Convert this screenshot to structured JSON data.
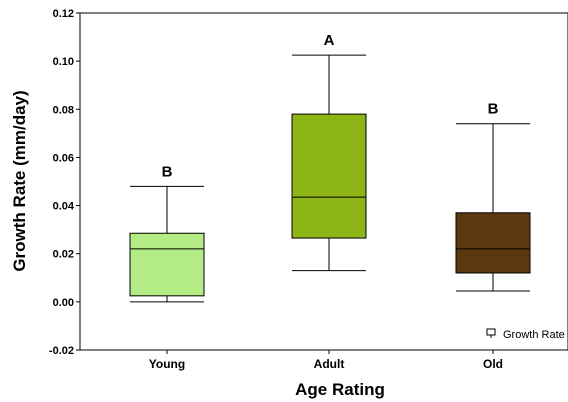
{
  "chart_data": {
    "type": "box",
    "xlabel": "Age Rating",
    "ylabel": "Growth Rate (mm/day)",
    "ylim": [
      -0.02,
      0.12
    ],
    "yticks": [
      -0.02,
      0.0,
      0.02,
      0.04,
      0.06,
      0.08,
      0.1,
      0.12
    ],
    "ytick_labels": [
      "-0.02",
      "0.00",
      "0.02",
      "0.04",
      "0.06",
      "0.08",
      "0.10",
      "0.12"
    ],
    "categories": [
      "Young",
      "Adult",
      "Old"
    ],
    "series": [
      {
        "name": "Growth Rate",
        "boxes": [
          {
            "category": "Young",
            "min": 0.0,
            "q1": 0.0025,
            "median": 0.022,
            "q3": 0.0285,
            "max": 0.048,
            "letter": "B",
            "color": "#b3ec84"
          },
          {
            "category": "Adult",
            "min": 0.013,
            "q1": 0.0265,
            "median": 0.0435,
            "q3": 0.078,
            "max": 0.1025,
            "letter": "A",
            "color": "#8db516"
          },
          {
            "category": "Old",
            "min": 0.0045,
            "q1": 0.012,
            "median": 0.022,
            "q3": 0.037,
            "max": 0.074,
            "letter": "B",
            "color": "#5a3911"
          }
        ]
      }
    ],
    "legend": {
      "position": "bottom-right",
      "label": "Growth Rate"
    },
    "grid": false
  }
}
